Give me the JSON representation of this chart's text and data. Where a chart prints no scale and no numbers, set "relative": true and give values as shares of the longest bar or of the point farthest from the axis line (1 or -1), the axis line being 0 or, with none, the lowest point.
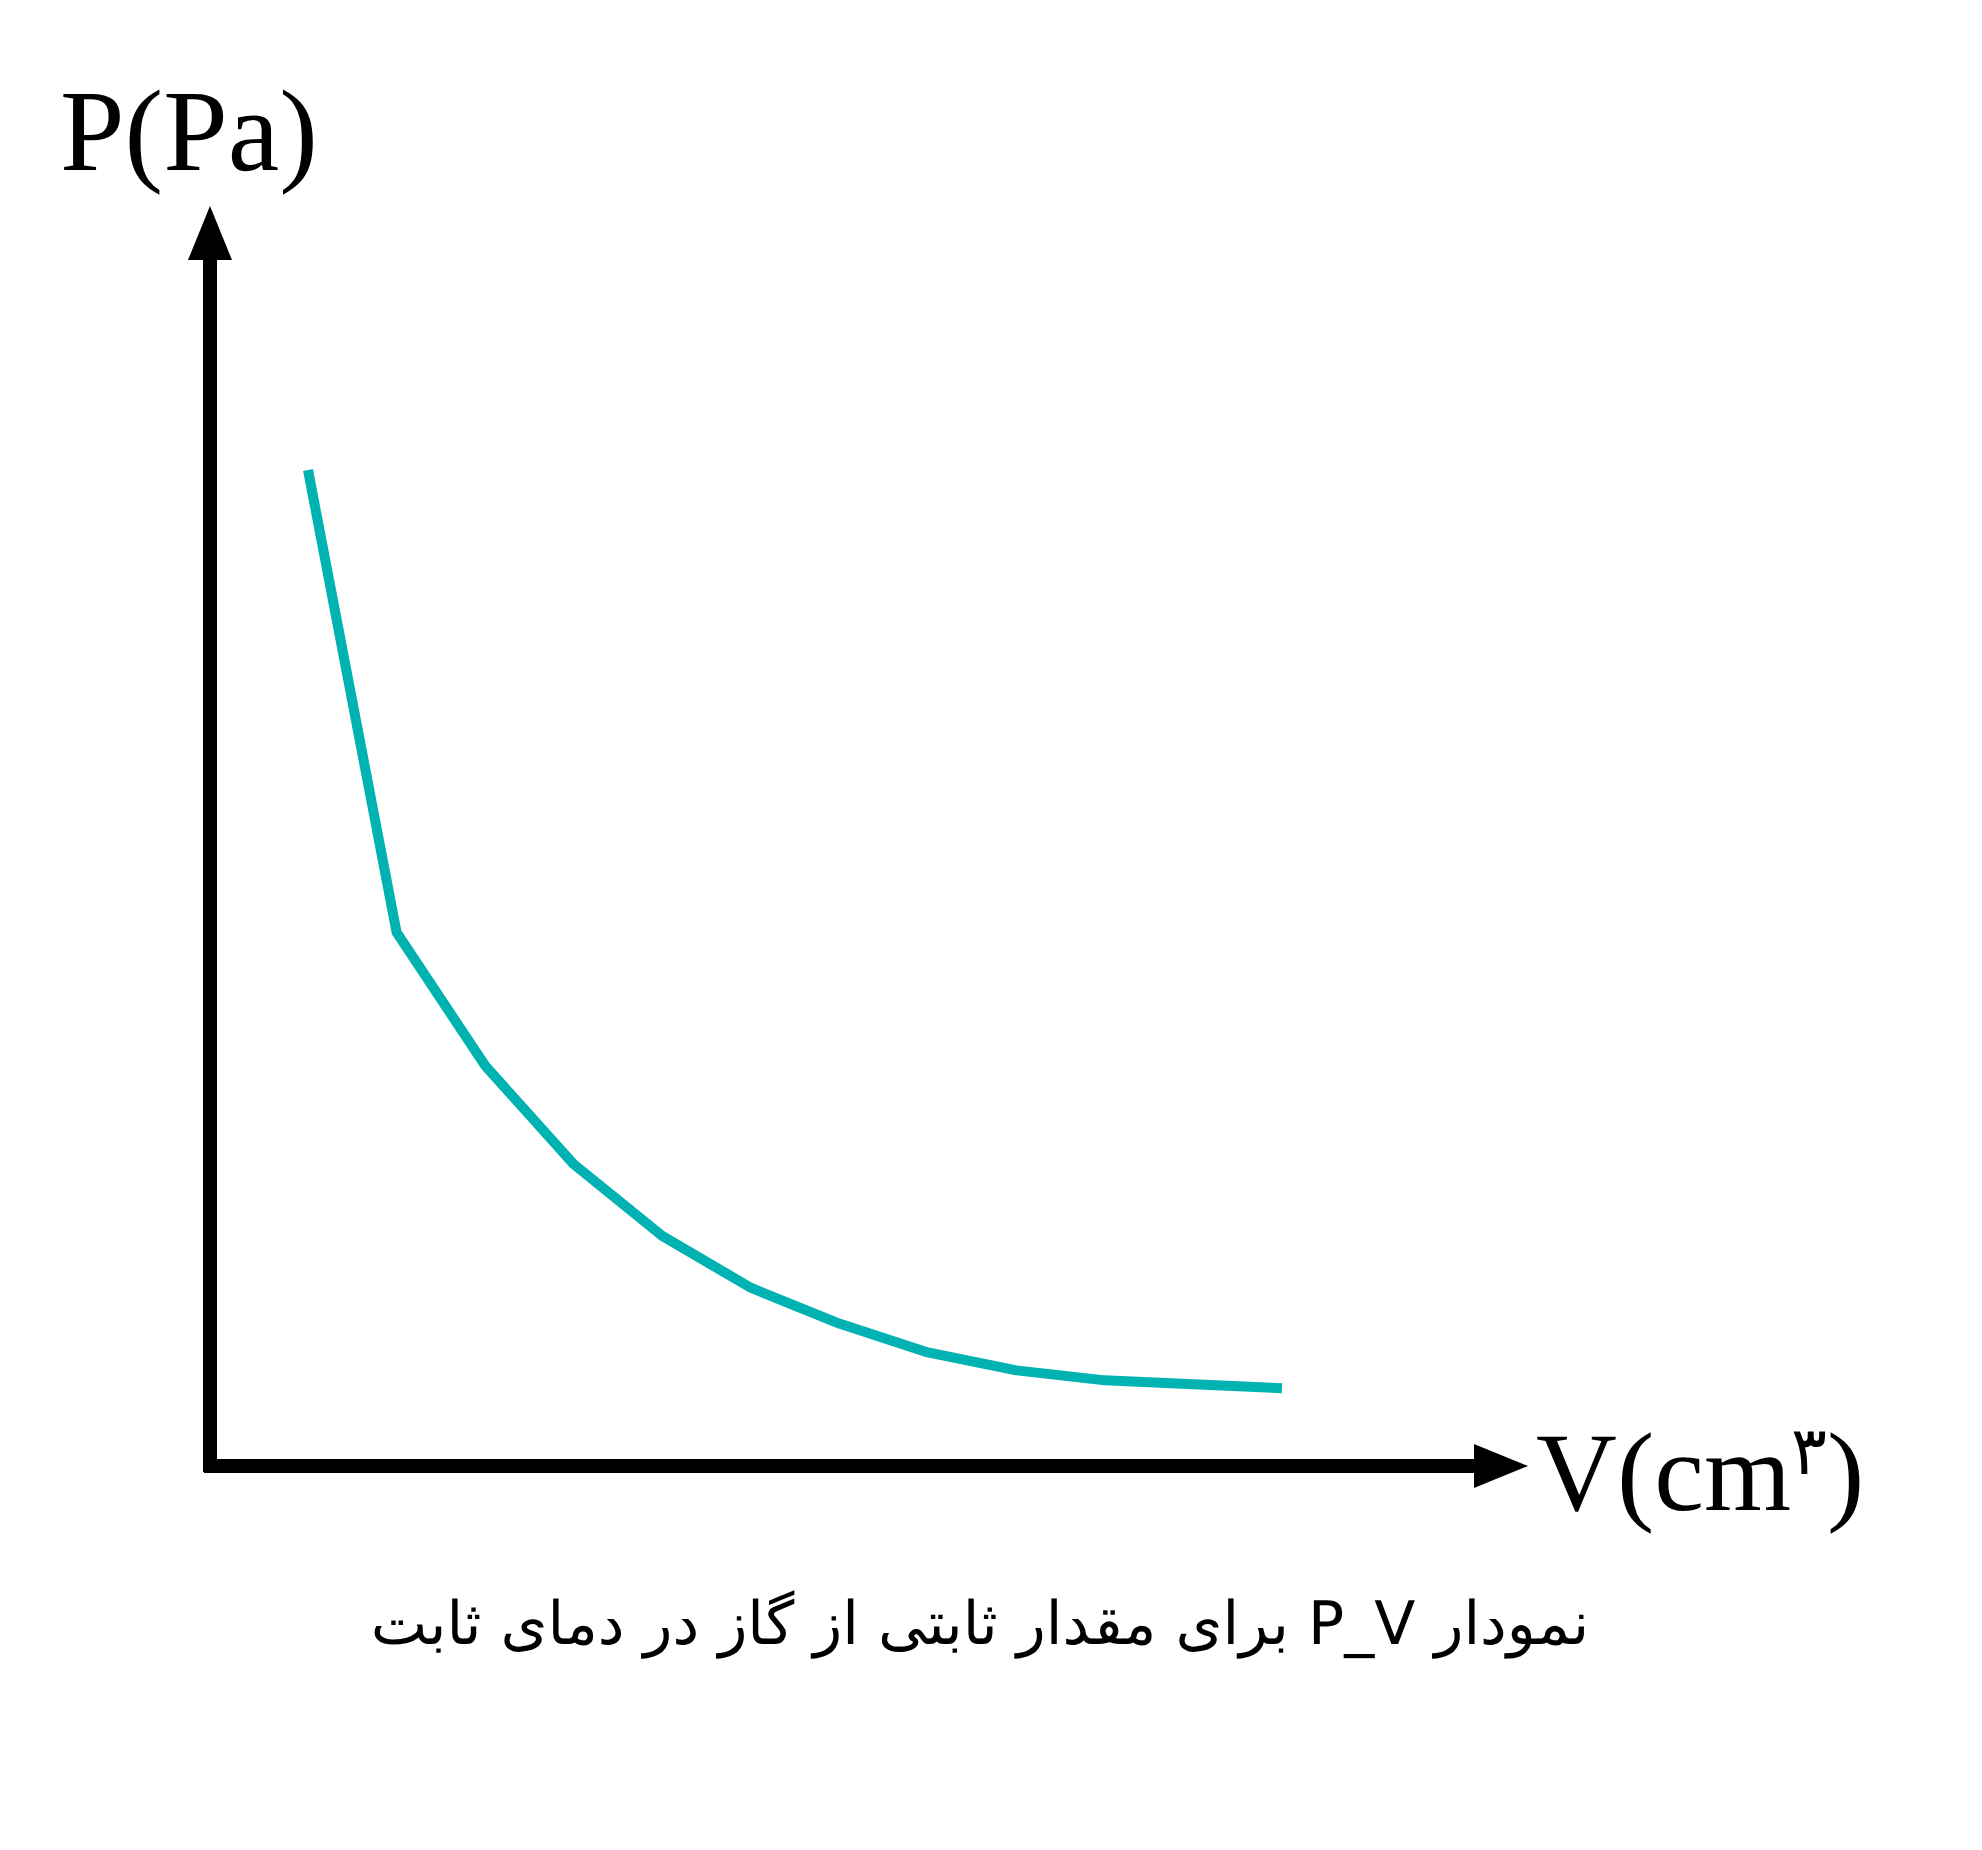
{
  "chart_data": {
    "type": "line",
    "relative": true,
    "ylabel": "P(Pa)",
    "xlabel": "V(cm$^{۳}$)",
    "annotations": [
      "نمودار P_V برای مقدار ثابتی از گاز در دمای ثابت"
    ],
    "categories": [
      null,
      null,
      null,
      null,
      null,
      null,
      null,
      null,
      null,
      null,
      null,
      null
    ],
    "series": [
      {
        "color": "#00b2b2",
        "values": [
          1,
          0.536,
          0.402,
          0.303,
          0.231,
          0.179,
          0.143,
          0.114,
          0.096,
          0.086,
          0.082,
          0.078
        ]
      }
    ]
  }
}
